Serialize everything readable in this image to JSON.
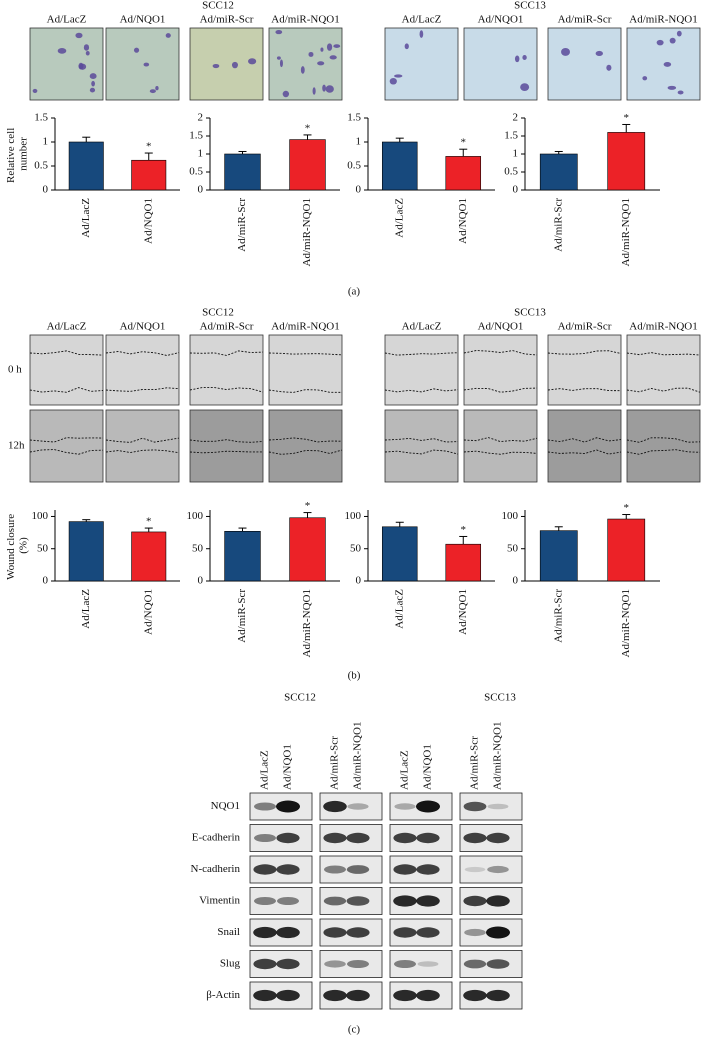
{
  "figure": {
    "panels": [
      {
        "caption": "(a)",
        "groups": [
          {
            "title": "SCC12",
            "columns": [
              "Ad/LacZ",
              "Ad/NQO1",
              "Ad/miR-Scr",
              "Ad/miR-NQO1"
            ]
          },
          {
            "title": "SCC13",
            "columns": [
              "Ad/LacZ",
              "Ad/NQO1",
              "Ad/miR-Scr",
              "Ad/miR-NQO1"
            ]
          }
        ]
      },
      {
        "caption": "(b)",
        "rows": [
          "0 h",
          "12h"
        ],
        "groups": [
          {
            "title": "SCC12",
            "columns": [
              "Ad/LacZ",
              "Ad/NQO1",
              "Ad/miR-Scr",
              "Ad/miR-NQO1"
            ]
          },
          {
            "title": "SCC13",
            "columns": [
              "Ad/LacZ",
              "Ad/NQO1",
              "Ad/miR-Scr",
              "Ad/miR-NQO1"
            ]
          }
        ]
      },
      {
        "caption": "(c)",
        "groups": [
          {
            "title": "SCC12",
            "lanes": [
              "Ad/LacZ",
              "Ad/NQO1",
              "Ad/miR-Scr",
              "Ad/miR-NQO1"
            ]
          },
          {
            "title": "SCC13",
            "lanes": [
              "Ad/LacZ",
              "Ad/NQO1",
              "Ad/miR-Scr",
              "Ad/miR-NQO1"
            ]
          }
        ],
        "blots": [
          "NQO1",
          "E-cadherin",
          "N-cadherin",
          "Vimentin",
          "Snail",
          "Slug",
          "β-Actin"
        ]
      }
    ]
  },
  "chart_data": [
    {
      "type": "bar",
      "ylabel": "Relative cell number",
      "categories": [
        "Ad/LacZ",
        "Ad/NQO1"
      ],
      "values": [
        1.0,
        0.62
      ],
      "errors": [
        0.1,
        0.15
      ],
      "annotations": [
        null,
        "*"
      ],
      "colors": [
        "#17497d",
        "#ec2227"
      ],
      "ylim": [
        0,
        1.5
      ],
      "yticks": [
        0,
        0.5,
        1,
        1.5
      ]
    },
    {
      "type": "bar",
      "categories": [
        "Ad/miR-Scr",
        "Ad/miR-NQO1"
      ],
      "values": [
        1.0,
        1.4
      ],
      "errors": [
        0.07,
        0.13
      ],
      "annotations": [
        null,
        "*"
      ],
      "colors": [
        "#17497d",
        "#ec2227"
      ],
      "ylim": [
        0,
        2
      ],
      "yticks": [
        0,
        0.5,
        1,
        1.5,
        2
      ]
    },
    {
      "type": "bar",
      "categories": [
        "Ad/LacZ",
        "Ad/NQO1"
      ],
      "values": [
        1.0,
        0.7
      ],
      "errors": [
        0.08,
        0.15
      ],
      "annotations": [
        null,
        "*"
      ],
      "colors": [
        "#17497d",
        "#ec2227"
      ],
      "ylim": [
        0,
        1.5
      ],
      "yticks": [
        0,
        0.5,
        1,
        1.5
      ]
    },
    {
      "type": "bar",
      "categories": [
        "Ad/miR-Scr",
        "Ad/miR-NQO1"
      ],
      "values": [
        1.0,
        1.6
      ],
      "errors": [
        0.07,
        0.22
      ],
      "annotations": [
        null,
        "*"
      ],
      "colors": [
        "#17497d",
        "#ec2227"
      ],
      "ylim": [
        0,
        2
      ],
      "yticks": [
        0,
        0.5,
        1,
        1.5,
        2
      ]
    },
    {
      "type": "bar",
      "ylabel": "Wound closure (%)",
      "categories": [
        "Ad/LacZ",
        "Ad/NQO1"
      ],
      "values": [
        92,
        76
      ],
      "errors": [
        3,
        6
      ],
      "annotations": [
        null,
        "*"
      ],
      "colors": [
        "#17497d",
        "#ec2227"
      ],
      "ylim": [
        0,
        110
      ],
      "yticks": [
        0,
        50,
        100
      ]
    },
    {
      "type": "bar",
      "categories": [
        "Ad/miR-Scr",
        "Ad/miR-NQO1"
      ],
      "values": [
        77,
        98
      ],
      "errors": [
        5,
        8
      ],
      "annotations": [
        null,
        "*"
      ],
      "colors": [
        "#17497d",
        "#ec2227"
      ],
      "ylim": [
        0,
        110
      ],
      "yticks": [
        0,
        50,
        100
      ]
    },
    {
      "type": "bar",
      "categories": [
        "Ad/LacZ",
        "Ad/NQO1"
      ],
      "values": [
        84,
        57
      ],
      "errors": [
        7,
        12
      ],
      "annotations": [
        null,
        "*"
      ],
      "colors": [
        "#17497d",
        "#ec2227"
      ],
      "ylim": [
        0,
        110
      ],
      "yticks": [
        0,
        50,
        100
      ]
    },
    {
      "type": "bar",
      "categories": [
        "Ad/miR-Scr",
        "Ad/miR-NQO1"
      ],
      "values": [
        78,
        96
      ],
      "errors": [
        6,
        7
      ],
      "annotations": [
        null,
        "*"
      ],
      "colors": [
        "#17497d",
        "#ec2227"
      ],
      "ylim": [
        0,
        110
      ],
      "yticks": [
        0,
        50,
        100
      ]
    }
  ]
}
